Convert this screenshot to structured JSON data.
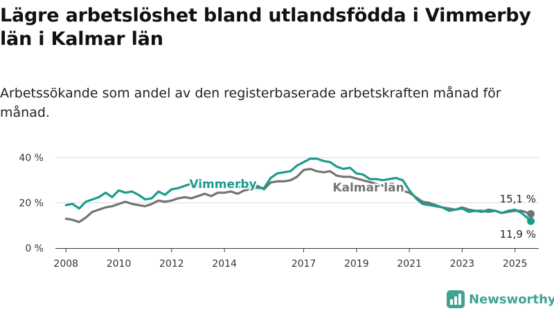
{
  "title": "Lägre arbetslöshet bland utlandsfödda i Vimmerby län i Kalmar län",
  "subtitle": "Arbetssökande som andel av den registerbaserade arbetskraften månad för månad.",
  "brand": "Newsworthy",
  "colors": {
    "vimmerby": "#1a9c8c",
    "kalmar": "#737373",
    "grid": "#d9d9d9",
    "brand": "#3fa394"
  },
  "chart_data": {
    "type": "line",
    "x_ticks": [
      "2008",
      "2010",
      "2012",
      "2014",
      "2017",
      "2019",
      "2021",
      "2023",
      "2025"
    ],
    "y_ticks": [
      "0 %",
      "20 %",
      "40 %"
    ],
    "ylim": [
      0,
      40
    ],
    "xlim": [
      2007.6,
      2025.9
    ],
    "grid": true,
    "series": [
      {
        "name": "Vimmerby",
        "color": "#1a9c8c",
        "end_label": "11,9 %",
        "points": [
          [
            2008.0,
            19.0
          ],
          [
            2008.25,
            19.5
          ],
          [
            2008.5,
            17.5
          ],
          [
            2008.75,
            20.5
          ],
          [
            2009.0,
            21.5
          ],
          [
            2009.25,
            22.5
          ],
          [
            2009.5,
            24.5
          ],
          [
            2009.75,
            22.5
          ],
          [
            2010.0,
            25.5
          ],
          [
            2010.25,
            24.5
          ],
          [
            2010.5,
            25.0
          ],
          [
            2010.75,
            23.5
          ],
          [
            2011.0,
            21.5
          ],
          [
            2011.25,
            22.0
          ],
          [
            2011.5,
            25.0
          ],
          [
            2011.75,
            23.5
          ],
          [
            2012.0,
            26.0
          ],
          [
            2012.25,
            26.5
          ],
          [
            2012.5,
            27.5
          ],
          [
            2012.75,
            28.5
          ],
          [
            2013.0,
            28.0
          ],
          [
            2013.5,
            27.5
          ],
          [
            2015.5,
            26.5
          ],
          [
            2015.75,
            31.0
          ],
          [
            2016.0,
            33.0
          ],
          [
            2016.25,
            33.5
          ],
          [
            2016.5,
            34.0
          ],
          [
            2016.75,
            36.5
          ],
          [
            2017.0,
            38.0
          ],
          [
            2017.25,
            39.5
          ],
          [
            2017.5,
            39.5
          ],
          [
            2017.75,
            38.5
          ],
          [
            2018.0,
            38.0
          ],
          [
            2018.25,
            36.0
          ],
          [
            2018.5,
            35.0
          ],
          [
            2018.75,
            35.5
          ],
          [
            2019.0,
            33.0
          ],
          [
            2019.25,
            32.5
          ],
          [
            2019.5,
            30.5
          ],
          [
            2019.75,
            30.5
          ],
          [
            2020.0,
            30.0
          ],
          [
            2020.25,
            30.5
          ],
          [
            2020.5,
            31.0
          ],
          [
            2020.75,
            30.0
          ],
          [
            2021.0,
            25.5
          ],
          [
            2021.25,
            22.0
          ],
          [
            2021.5,
            19.5
          ],
          [
            2021.75,
            19.0
          ],
          [
            2022.0,
            18.5
          ],
          [
            2022.25,
            18.0
          ],
          [
            2022.5,
            16.5
          ],
          [
            2022.75,
            17.0
          ],
          [
            2023.0,
            17.5
          ],
          [
            2023.25,
            16.0
          ],
          [
            2023.5,
            16.5
          ],
          [
            2023.75,
            16.0
          ],
          [
            2024.0,
            17.0
          ],
          [
            2024.25,
            16.5
          ],
          [
            2024.5,
            15.5
          ],
          [
            2024.75,
            16.5
          ],
          [
            2025.0,
            17.0
          ],
          [
            2025.25,
            15.5
          ],
          [
            2025.5,
            13.0
          ],
          [
            2025.6,
            11.9
          ]
        ]
      },
      {
        "name": "Kalmar län",
        "color": "#737373",
        "end_label": "15,1 %",
        "points": [
          [
            2008.0,
            13.0
          ],
          [
            2008.25,
            12.5
          ],
          [
            2008.5,
            11.5
          ],
          [
            2008.75,
            13.5
          ],
          [
            2009.0,
            16.0
          ],
          [
            2009.25,
            17.0
          ],
          [
            2009.5,
            18.0
          ],
          [
            2009.75,
            18.5
          ],
          [
            2010.0,
            19.5
          ],
          [
            2010.25,
            20.5
          ],
          [
            2010.5,
            19.5
          ],
          [
            2010.75,
            19.0
          ],
          [
            2011.0,
            18.5
          ],
          [
            2011.25,
            19.5
          ],
          [
            2011.5,
            21.0
          ],
          [
            2011.75,
            20.5
          ],
          [
            2012.0,
            21.0
          ],
          [
            2012.25,
            22.0
          ],
          [
            2012.5,
            22.5
          ],
          [
            2012.75,
            22.0
          ],
          [
            2013.0,
            23.0
          ],
          [
            2013.25,
            24.0
          ],
          [
            2013.5,
            23.0
          ],
          [
            2013.75,
            24.5
          ],
          [
            2014.0,
            24.5
          ],
          [
            2014.25,
            25.0
          ],
          [
            2014.5,
            24.0
          ],
          [
            2014.75,
            25.5
          ],
          [
            2015.0,
            26.0
          ],
          [
            2015.25,
            27.5
          ],
          [
            2015.5,
            26.0
          ],
          [
            2015.75,
            29.0
          ],
          [
            2016.0,
            29.5
          ],
          [
            2016.25,
            29.5
          ],
          [
            2016.5,
            30.0
          ],
          [
            2016.75,
            31.5
          ],
          [
            2017.0,
            34.5
          ],
          [
            2017.25,
            35.0
          ],
          [
            2017.5,
            34.0
          ],
          [
            2017.75,
            33.5
          ],
          [
            2018.0,
            34.0
          ],
          [
            2018.25,
            32.0
          ],
          [
            2018.5,
            31.5
          ],
          [
            2018.75,
            31.5
          ],
          [
            2021.0,
            24.5
          ],
          [
            2021.25,
            22.5
          ],
          [
            2021.5,
            20.5
          ],
          [
            2021.75,
            20.0
          ],
          [
            2022.0,
            19.0
          ],
          [
            2022.25,
            18.0
          ],
          [
            2022.5,
            17.5
          ],
          [
            2022.75,
            17.0
          ],
          [
            2023.0,
            18.0
          ],
          [
            2023.25,
            17.0
          ],
          [
            2023.5,
            16.5
          ],
          [
            2023.75,
            16.5
          ],
          [
            2024.0,
            16.0
          ],
          [
            2024.25,
            16.5
          ],
          [
            2024.5,
            15.5
          ],
          [
            2024.75,
            16.0
          ],
          [
            2025.0,
            16.5
          ],
          [
            2025.25,
            16.5
          ],
          [
            2025.5,
            15.5
          ],
          [
            2025.6,
            15.1
          ]
        ]
      }
    ]
  }
}
